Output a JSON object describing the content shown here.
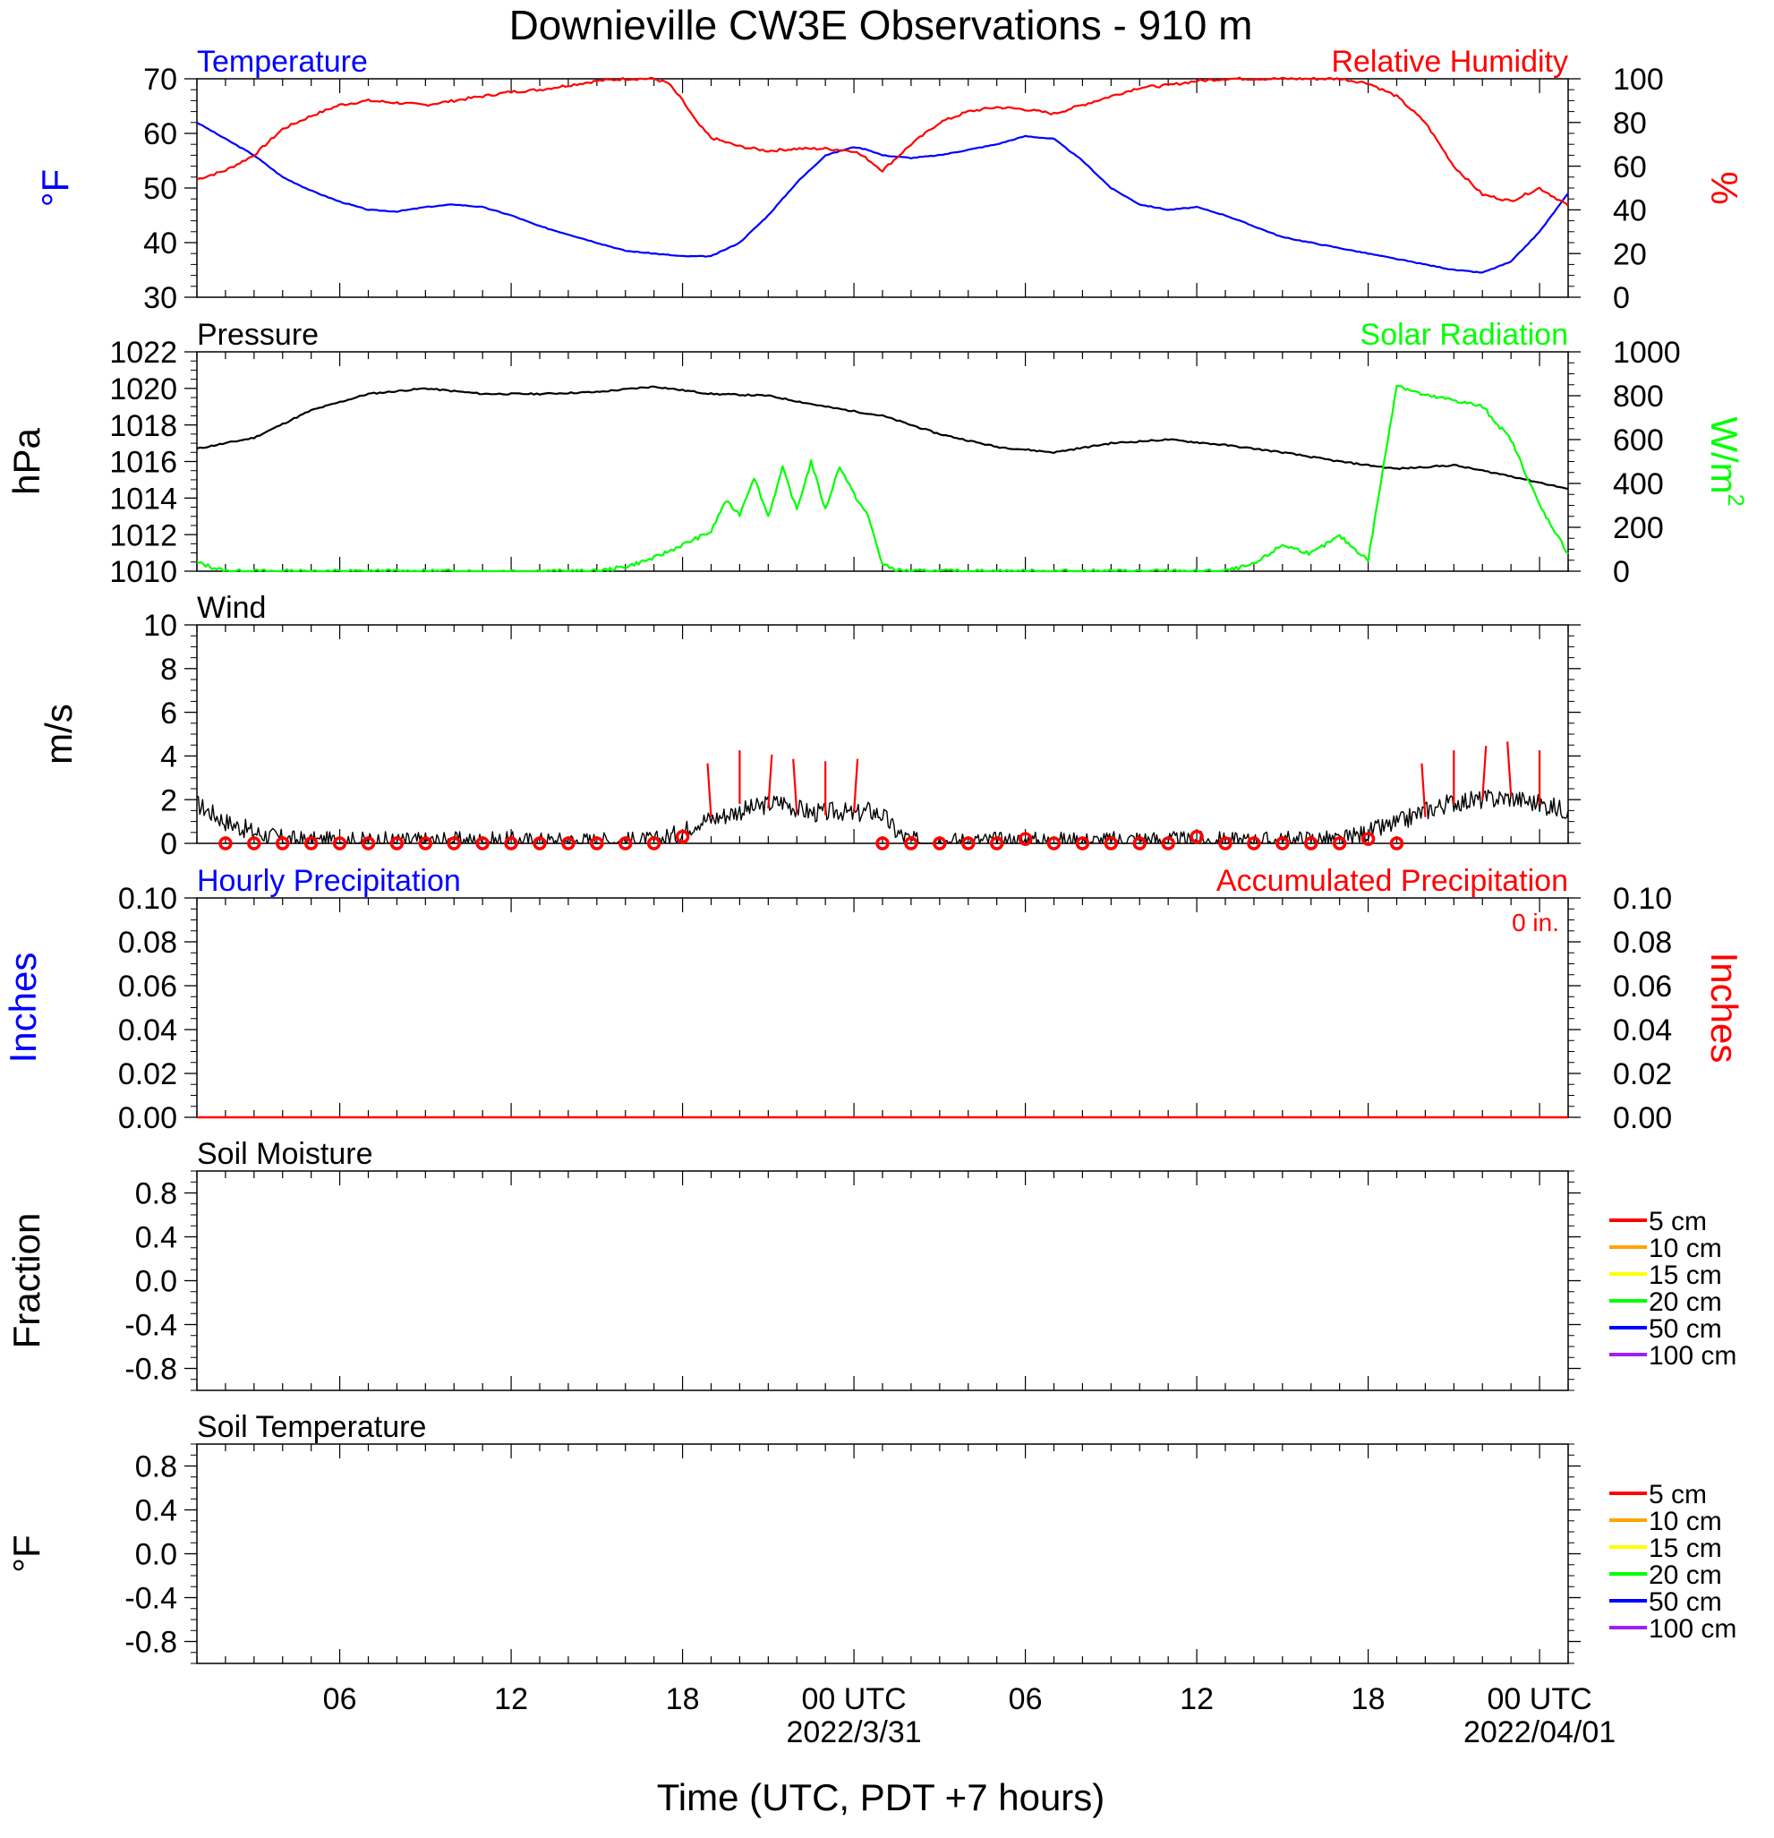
{
  "colors": {
    "temperature": "#0000ff",
    "humidity": "#ff0000",
    "pressure": "#000000",
    "solar": "#00ff00",
    "wind": "#000000",
    "barb": "#ff0000",
    "hourly_precip": "#0000ff",
    "accum_precip": "#ff0000"
  },
  "chart_data": {
    "type": "line",
    "title": "Downieville CW3E Observations - 910 m",
    "xlabel": "Time (UTC, PDT +7 hours)",
    "x_unit": "hours since 2022-03-30 01:00 UTC",
    "x_ticks": [
      {
        "hour": 5,
        "label": "06",
        "date": ""
      },
      {
        "hour": 11,
        "label": "12",
        "date": ""
      },
      {
        "hour": 17,
        "label": "18",
        "date": ""
      },
      {
        "hour": 23,
        "label": "00 UTC",
        "date": "2022/3/31"
      },
      {
        "hour": 29,
        "label": "06",
        "date": ""
      },
      {
        "hour": 35,
        "label": "12",
        "date": ""
      },
      {
        "hour": 41,
        "label": "18",
        "date": ""
      },
      {
        "hour": 47,
        "label": "00 UTC",
        "date": "2022/04/01"
      }
    ],
    "x_range": [
      0,
      48
    ],
    "panels": {
      "temp_rh": {
        "left_title": "Temperature",
        "right_title": "Relative Humidity",
        "left_ylabel": "°F",
        "right_ylabel": "%",
        "left_ylim": [
          30,
          70
        ],
        "left_ticks": [
          "70",
          "60",
          "50",
          "40",
          "30"
        ],
        "right_ylim": [
          0,
          100
        ],
        "right_ticks": [
          "100",
          "80",
          "60",
          "40",
          "20",
          "0"
        ],
        "series": [
          {
            "name": "Temperature",
            "axis": "left",
            "x": [
              0,
              1,
              2,
              3,
              4,
              5,
              6,
              7,
              8,
              9,
              10,
              11,
              12,
              13,
              14,
              15,
              16,
              17,
              18,
              19,
              20,
              21,
              22,
              23,
              23.5,
              24,
              25,
              26,
              27,
              28,
              29,
              30,
              31,
              32,
              33,
              34,
              35,
              36,
              37,
              38,
              39,
              40,
              41,
              42,
              43,
              44,
              45,
              46,
              47,
              48
            ],
            "values": [
              62,
              59,
              56,
              52,
              49.5,
              47.5,
              46,
              45.7,
              46.5,
              47,
              46.5,
              45,
              43,
              41.5,
              40,
              38.5,
              38,
              37.5,
              37.5,
              40,
              45,
              51,
              56,
              57.5,
              57,
              56,
              55.5,
              56,
              57,
              58,
              59.5,
              59,
              55,
              50,
              47,
              46,
              46.5,
              45,
              43,
              41,
              40,
              39,
              38,
              37,
              36,
              35,
              34.5,
              36.5,
              42,
              49
            ]
          },
          {
            "name": "Relative Humidity",
            "axis": "right",
            "x": [
              0,
              1,
              2,
              3,
              4,
              5,
              6,
              7,
              8,
              9,
              10,
              11,
              12,
              13,
              14,
              15,
              16,
              16.5,
              17,
              17.5,
              18,
              19,
              20,
              21,
              22,
              23,
              23.5,
              24,
              25,
              26,
              27,
              28,
              29,
              30,
              31,
              32,
              33,
              34,
              35,
              36,
              37,
              38,
              39,
              40,
              41,
              42,
              43,
              44,
              45,
              46,
              47,
              48
            ],
            "values": [
              54,
              58,
              65,
              77,
              83,
              88,
              90,
              89,
              88,
              90,
              92,
              94,
              95,
              97,
              99,
              100,
              100,
              98,
              90,
              80,
              73,
              69,
              67,
              68,
              68,
              67,
              63,
              58,
              70,
              80,
              85,
              87,
              86,
              84,
              88,
              92,
              96,
              97,
              99,
              100,
              100,
              100,
              100,
              100,
              98,
              92,
              80,
              60,
              47,
              44,
              50,
              42
            ]
          }
        ]
      },
      "pressure_solar": {
        "left_title": "Pressure",
        "right_title": "Solar Radiation",
        "left_ylabel": "hPa",
        "right_ylabel": "W/m",
        "right_ylabel_sup": "2",
        "left_ylim": [
          1010,
          1022
        ],
        "left_ticks": [
          "1022",
          "1020",
          "1018",
          "1016",
          "1014",
          "1012",
          "1010"
        ],
        "right_ylim": [
          0,
          1000
        ],
        "right_ticks": [
          "1000",
          "800",
          "600",
          "400",
          "200",
          "0"
        ],
        "series": [
          {
            "name": "Pressure",
            "axis": "left",
            "x": [
              0,
              2,
              4,
              6,
              8,
              10,
              12,
              14,
              16,
              18,
              20,
              22,
              24,
              26,
              28,
              30,
              32,
              34,
              36,
              38,
              40,
              42,
              44,
              46,
              48
            ],
            "values": [
              1016.7,
              1017.3,
              1018.8,
              1019.7,
              1020.0,
              1019.7,
              1019.7,
              1019.8,
              1020.1,
              1019.7,
              1019.6,
              1019.0,
              1018.5,
              1017.5,
              1016.8,
              1016.5,
              1017.0,
              1017.2,
              1016.9,
              1016.5,
              1016.0,
              1015.6,
              1015.8,
              1015.2,
              1014.5
            ]
          },
          {
            "name": "Solar Radiation",
            "axis": "right",
            "x": [
              0,
              1,
              12,
              13,
              14,
              15,
              16,
              17,
              18,
              18.5,
              19,
              19.5,
              20,
              20.5,
              21,
              21.5,
              22,
              22.5,
              23,
              23.5,
              24,
              24.5,
              25,
              26,
              27,
              36,
              37,
              38,
              39,
              40,
              41,
              42,
              43,
              44,
              45,
              46,
              47,
              48
            ],
            "values": [
              40,
              0,
              0,
              0,
              0,
              20,
              60,
              120,
              180,
              320,
              260,
              430,
              250,
              470,
              280,
              500,
              280,
              480,
              350,
              250,
              30,
              5,
              0,
              0,
              0,
              0,
              30,
              120,
              80,
              160,
              50,
              850,
              800,
              780,
              750,
              600,
              300,
              80
            ]
          }
        ]
      },
      "wind": {
        "title": "Wind",
        "ylabel": "m/s",
        "ylim": [
          0,
          10
        ],
        "ticks": [
          "10",
          "8",
          "6",
          "4",
          "2",
          "0"
        ],
        "speed_x": [
          0,
          1,
          2,
          3,
          4,
          5,
          6,
          7,
          8,
          9,
          10,
          11,
          12,
          13,
          14,
          15,
          16,
          17,
          17.5,
          18,
          18.5,
          19,
          19.5,
          20,
          20.5,
          21,
          21.5,
          22,
          22.5,
          23,
          23.5,
          24,
          24.5,
          25,
          26,
          27,
          28,
          29,
          30,
          31,
          32,
          33,
          34,
          35,
          36,
          37,
          38,
          39,
          40,
          41,
          42,
          43,
          44,
          45,
          46,
          47,
          48
        ],
        "speed_values": [
          1.8,
          1.0,
          0.5,
          0.2,
          0.1,
          0.1,
          0.1,
          0.1,
          0.1,
          0.1,
          0.1,
          0.1,
          0.1,
          0.1,
          0.1,
          0.1,
          0.1,
          0.5,
          1.0,
          1.1,
          1.3,
          1.5,
          1.6,
          1.8,
          1.9,
          1.6,
          1.4,
          1.4,
          1.5,
          1.3,
          1.5,
          1.3,
          0.5,
          0.1,
          0.1,
          0.1,
          0.1,
          0.1,
          0.1,
          0.1,
          0.1,
          0.2,
          0.1,
          0.1,
          0.1,
          0.1,
          0.1,
          0.2,
          0.1,
          0.5,
          0.9,
          1.5,
          1.9,
          2.0,
          2.1,
          1.8,
          1.5
        ],
        "barb_points": [
          {
            "hour": 1,
            "speed": 0.0
          },
          {
            "hour": 2,
            "speed": 0.0
          },
          {
            "hour": 3,
            "speed": 0.0
          },
          {
            "hour": 4,
            "speed": 0.0
          },
          {
            "hour": 5,
            "speed": 0.0
          },
          {
            "hour": 6,
            "speed": 0.0
          },
          {
            "hour": 7,
            "speed": 0.0
          },
          {
            "hour": 8,
            "speed": 0.0
          },
          {
            "hour": 9,
            "speed": 0.0
          },
          {
            "hour": 10,
            "speed": 0.0
          },
          {
            "hour": 11,
            "speed": 0.0
          },
          {
            "hour": 12,
            "speed": 0.0
          },
          {
            "hour": 13,
            "speed": 0.0
          },
          {
            "hour": 14,
            "speed": 0.0
          },
          {
            "hour": 15,
            "speed": 0.0
          },
          {
            "hour": 16,
            "speed": 0.0
          },
          {
            "hour": 17,
            "speed": 0.3
          },
          {
            "hour": 24,
            "speed": 0.0
          },
          {
            "hour": 25,
            "speed": 0.0
          },
          {
            "hour": 26,
            "speed": 0.0
          },
          {
            "hour": 27,
            "speed": 0.0
          },
          {
            "hour": 28,
            "speed": 0.0
          },
          {
            "hour": 29,
            "speed": 0.2
          },
          {
            "hour": 30,
            "speed": 0.0
          },
          {
            "hour": 31,
            "speed": 0.0
          },
          {
            "hour": 32,
            "speed": 0.0
          },
          {
            "hour": 33,
            "speed": 0.0
          },
          {
            "hour": 34,
            "speed": 0.0
          },
          {
            "hour": 35,
            "speed": 0.3
          },
          {
            "hour": 36,
            "speed": 0.0
          },
          {
            "hour": 37,
            "speed": 0.0
          },
          {
            "hour": 38,
            "speed": 0.0
          },
          {
            "hour": 39,
            "speed": 0.0
          },
          {
            "hour": 40,
            "speed": 0.0
          },
          {
            "hour": 41,
            "speed": 0.2
          },
          {
            "hour": 42,
            "speed": 0.0
          }
        ]
      },
      "precip": {
        "left_title": "Hourly Precipitation",
        "right_title": "Accumulated Precipitation",
        "total_label": "0 in.",
        "left_ylabel": "Inches",
        "right_ylabel": "Inches",
        "ylim": [
          0,
          0.1
        ],
        "ticks": [
          "0.10",
          "0.08",
          "0.06",
          "0.04",
          "0.02",
          "0.00"
        ],
        "hourly_values": [
          0
        ],
        "accumulated_values": [
          0
        ]
      },
      "soil_moisture": {
        "title": "Soil Moisture",
        "ylabel": "Fraction",
        "ylim": [
          -1,
          1
        ],
        "ticks": [
          "0.8",
          "0.4",
          "0.0",
          "-0.4",
          "-0.8"
        ],
        "legend": [
          {
            "label": "5 cm",
            "color": "#ff0000"
          },
          {
            "label": "10 cm",
            "color": "#ffa500"
          },
          {
            "label": "15 cm",
            "color": "#ffff00"
          },
          {
            "label": "20 cm",
            "color": "#00ff00"
          },
          {
            "label": "50 cm",
            "color": "#0000ff"
          },
          {
            "label": "100 cm",
            "color": "#a020f0"
          }
        ]
      },
      "soil_temperature": {
        "title": "Soil Temperature",
        "ylabel": "°F",
        "ylim": [
          -1,
          1
        ],
        "ticks": [
          "0.8",
          "0.4",
          "0.0",
          "-0.4",
          "-0.8"
        ],
        "legend": [
          {
            "label": "5 cm",
            "color": "#ff0000"
          },
          {
            "label": "10 cm",
            "color": "#ffa500"
          },
          {
            "label": "15 cm",
            "color": "#ffff00"
          },
          {
            "label": "20 cm",
            "color": "#00ff00"
          },
          {
            "label": "50 cm",
            "color": "#0000ff"
          },
          {
            "label": "100 cm",
            "color": "#a020f0"
          }
        ]
      }
    }
  }
}
